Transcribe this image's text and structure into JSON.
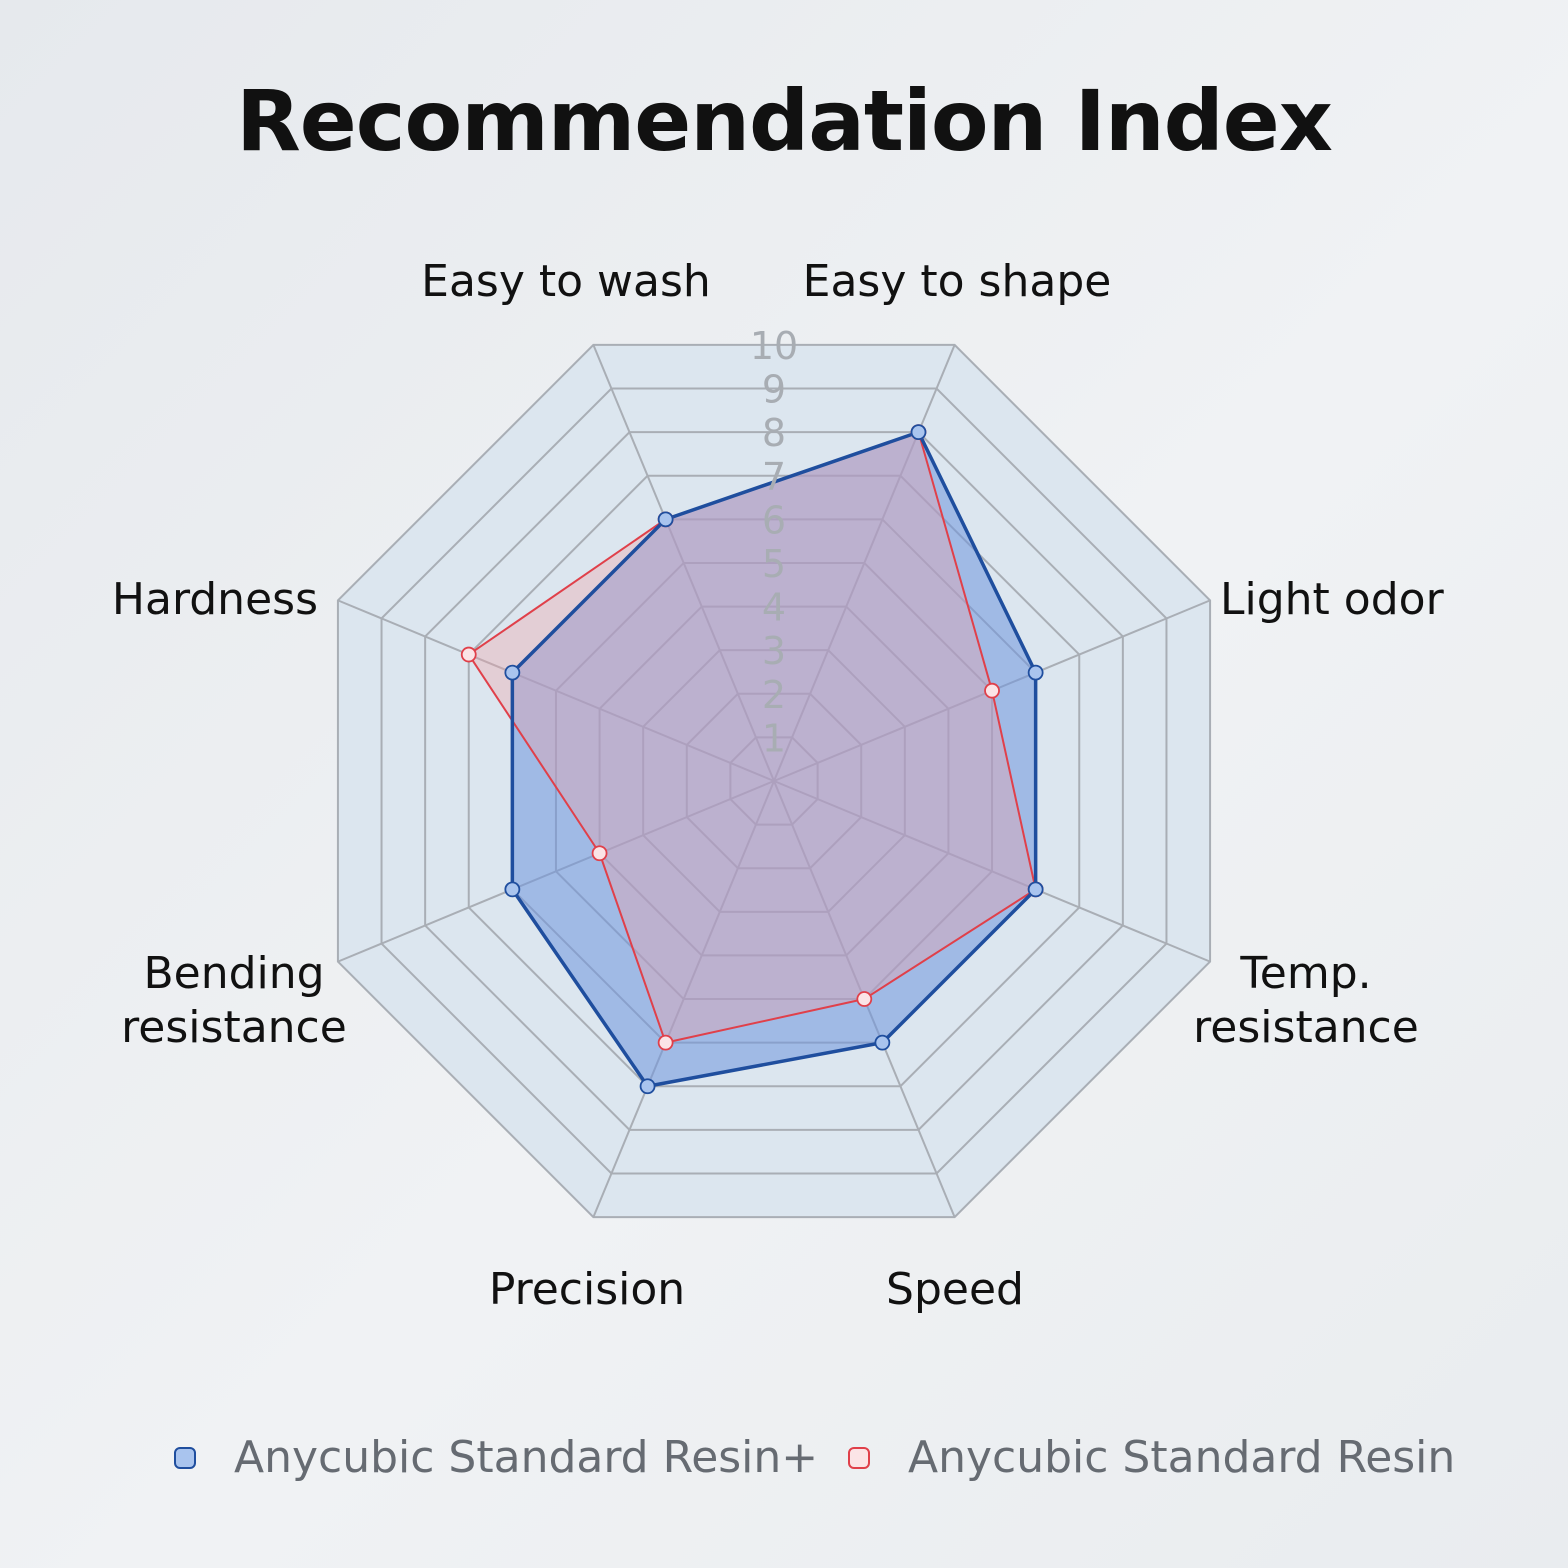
{
  "chart_data": {
    "type": "radar",
    "title": "Recommendation Index",
    "axes": [
      "Easy to wash",
      "Easy to shape",
      "Light odor",
      "Temp. resistance",
      "Speed",
      "Precision",
      "Bending resistance",
      "Hardness"
    ],
    "r_ticks": [
      "1",
      "2",
      "3",
      "4",
      "5",
      "6",
      "7",
      "8",
      "9",
      "10"
    ],
    "r_range": [
      0,
      10
    ],
    "series": [
      {
        "name": "Anycubic Standard Resin+",
        "values": [
          6,
          8,
          6,
          6,
          6,
          7,
          6,
          6
        ],
        "line_color": "#1f4e9e",
        "fill_color": "#6f96dc",
        "marker_color": "#a9c4ee"
      },
      {
        "name": "Anycubic Standard Resin",
        "values": [
          6,
          8,
          5,
          6,
          5,
          6,
          4,
          7
        ],
        "line_color": "#e0404a",
        "fill_color": "#f2a0a6",
        "marker_color": "#fbe4e6"
      }
    ],
    "legend_position": "bottom"
  }
}
